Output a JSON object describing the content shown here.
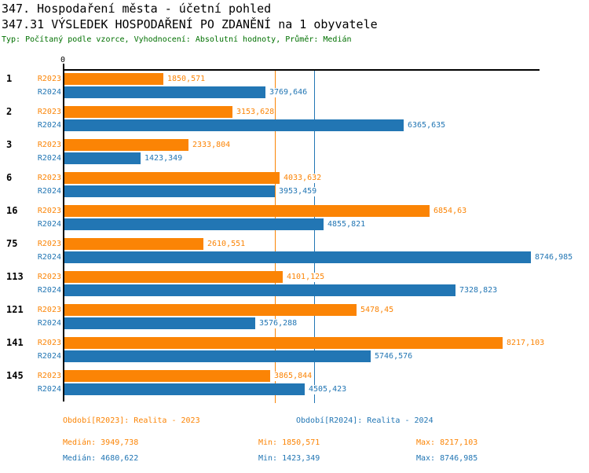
{
  "header": {
    "title": "347. Hospodaření města - účetní pohled",
    "subtitle": "347.31 VÝSLEDEK HOSPODAŘENÍ PO ZDANĚNÍ na 1 obyvatele",
    "meta": "Typ: Počítaný podle vzorce, Vyhodnocení: Absolutní hodnoty, Průměr: Medián"
  },
  "colors": {
    "r2023_orange": "#fb8405",
    "r2024_blue": "#2276b4",
    "axis_black": "#000000",
    "meta_green": "#007000"
  },
  "chart_data": {
    "type": "bar",
    "orientation": "horizontal",
    "title": "347.31 VÝSLEDEK HOSPODAŘENÍ PO ZDANĚNÍ na 1 obyvatele",
    "zero_label": "0",
    "xlim": [
      0,
      8915
    ],
    "grid": false,
    "categories": [
      "1",
      "2",
      "3",
      "6",
      "16",
      "75",
      "113",
      "121",
      "141",
      "145"
    ],
    "series": [
      {
        "name": "R2023",
        "color": "#fb8405",
        "values": [
          1850.571,
          3153.628,
          2333.804,
          4033.632,
          6854.63,
          2610.551,
          4101.125,
          5478.45,
          8217.103,
          3865.844
        ],
        "labels": [
          "1850,571",
          "3153,628",
          "2333,804",
          "4033,632",
          "6854,63",
          "2610,551",
          "4101,125",
          "5478,45",
          "8217,103",
          "3865,844"
        ],
        "median": 3949.738
      },
      {
        "name": "R2024",
        "color": "#2276b4",
        "values": [
          3769.646,
          6365.635,
          1423.349,
          3953.459,
          4855.821,
          8746.985,
          7328.823,
          3576.288,
          5746.576,
          4505.423
        ],
        "labels": [
          "3769,646",
          "6365,635",
          "1423,349",
          "3953,459",
          "4855,821",
          "8746,985",
          "7328,823",
          "3576,288",
          "5746,576",
          "4505,423"
        ],
        "median": 4680.622
      }
    ],
    "median_lines": [
      {
        "series": "R2023",
        "value": 3949.738,
        "color": "#fb8405"
      },
      {
        "series": "R2024",
        "value": 4680.622,
        "color": "#2276b4"
      }
    ],
    "legend_position": "bottom"
  },
  "legend": {
    "r2023": "Období[R2023]: Realita - 2023",
    "r2024": "Období[R2024]: Realita - 2024"
  },
  "stats": {
    "r2023": {
      "median": "Medián: 3949,738",
      "min": "Min: 1850,571",
      "max": "Max: 8217,103"
    },
    "r2024": {
      "median": "Medián: 4680,622",
      "min": "Min: 1423,349",
      "max": "Max: 8746,985"
    }
  }
}
